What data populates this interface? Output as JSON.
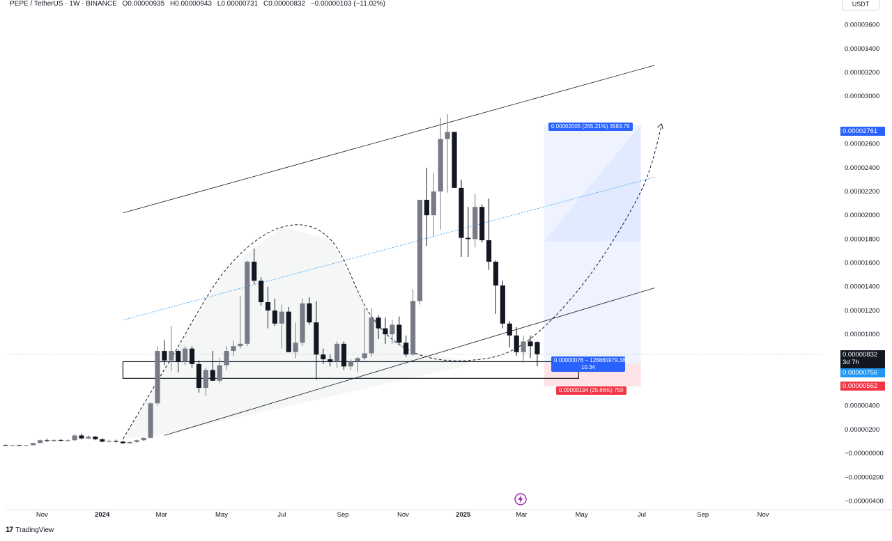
{
  "header": {
    "symbol": "PEPE / TetherUS · 1W · BINANCE",
    "open": "O0.00000935",
    "high": "H0.00000943",
    "low": "L0.00000731",
    "close": "C0.00000832",
    "change": "−0.00000103 (−11.02%)"
  },
  "currency_button": "USDT",
  "footer": {
    "logo": "17",
    "brand": "TradingView"
  },
  "lightning_icon": "lightning-icon",
  "price_tags": {
    "target": "0.00002761",
    "current": "0.00000832",
    "countdown": "3d 7h",
    "entry": "0.00000756",
    "stop": "0.00000562"
  },
  "position": {
    "profit_label": "0.00002005 (265.21%) 3583.76",
    "center_label_line1": "0.00000076 − 128865979.381",
    "center_label_line2": "10.34",
    "loss_label": "0.00000194 (25.66%) 750"
  },
  "colors": {
    "up": "#787b86",
    "down": "#131722",
    "profit_zone": "#2962ff",
    "loss_zone": "#f23645",
    "entry_tag": "#2196f3",
    "target_tag": "#2962ff",
    "stop_tag": "#f23645"
  },
  "chart_data": {
    "type": "candlestick",
    "y_axis": {
      "ticks": [
        3.6e-05,
        3.4e-05,
        3.2e-05,
        3e-05,
        2.6e-05,
        2.4e-05,
        2.2e-05,
        2e-05,
        1.8e-05,
        1.6e-05,
        1.4e-05,
        1.2e-05,
        1e-05,
        4e-06,
        2e-06,
        0,
        -2e-06,
        -4e-06
      ],
      "tick_labels": [
        "0.00003600",
        "0.00003400",
        "0.00003200",
        "0.00003000",
        "0.00002600",
        "0.00002400",
        "0.00002200",
        "0.00002000",
        "0.00001800",
        "0.00001600",
        "0.00001400",
        "0.00001200",
        "0.00001000",
        "0.00000400",
        "0.00000200",
        "−0.00000000",
        "−0.00000200",
        "−0.00000400"
      ],
      "range": [
        -4.5e-06,
        3.75e-05
      ]
    },
    "x_axis": {
      "labels": [
        "Nov",
        "2024",
        "Mar",
        "May",
        "Jul",
        "Sep",
        "Nov",
        "2025",
        "Mar",
        "May",
        "Jul",
        "Sep",
        "Nov"
      ],
      "label_dates": [
        "2023-11-01",
        "2024-01-01",
        "2024-03-01",
        "2024-05-01",
        "2024-07-01",
        "2024-09-01",
        "2024-11-01",
        "2025-01-01",
        "2025-03-01",
        "2025-05-01",
        "2025-07-01",
        "2025-09-01",
        "2025-11-01"
      ],
      "range": [
        "2023-09-25",
        "2025-12-31"
      ]
    },
    "candles": [
      {
        "t": "2023-09-25",
        "o": 7e-07,
        "h": 7.5e-07,
        "l": 6.4e-07,
        "c": 6.6e-07
      },
      {
        "t": "2023-10-02",
        "o": 6.6e-07,
        "h": 7.2e-07,
        "l": 6.3e-07,
        "c": 6.9e-07
      },
      {
        "t": "2023-10-09",
        "o": 6.9e-07,
        "h": 7.2e-07,
        "l": 6.2e-07,
        "c": 6.4e-07
      },
      {
        "t": "2023-10-16",
        "o": 6.4e-07,
        "h": 7e-07,
        "l": 6.2e-07,
        "c": 6.8e-07
      },
      {
        "t": "2023-10-23",
        "o": 6.8e-07,
        "h": 9e-07,
        "l": 6.6e-07,
        "c": 8.7e-07
      },
      {
        "t": "2023-10-30",
        "o": 8.7e-07,
        "h": 1.2e-06,
        "l": 8.5e-07,
        "c": 1.1e-06
      },
      {
        "t": "2023-11-06",
        "o": 1.1e-06,
        "h": 1.25e-06,
        "l": 9.5e-07,
        "c": 1.04e-06
      },
      {
        "t": "2023-11-13",
        "o": 1.04e-06,
        "h": 1.18e-06,
        "l": 9.5e-07,
        "c": 1.12e-06
      },
      {
        "t": "2023-11-20",
        "o": 1.12e-06,
        "h": 1.22e-06,
        "l": 9.8e-07,
        "c": 1.06e-06
      },
      {
        "t": "2023-11-27",
        "o": 1.06e-06,
        "h": 1.18e-06,
        "l": 9.8e-07,
        "c": 1.1e-06
      },
      {
        "t": "2023-12-04",
        "o": 1.1e-06,
        "h": 1.6e-06,
        "l": 1.05e-06,
        "c": 1.5e-06
      },
      {
        "t": "2023-12-11",
        "o": 1.5e-06,
        "h": 1.65e-06,
        "l": 1.18e-06,
        "c": 1.25e-06
      },
      {
        "t": "2023-12-18",
        "o": 1.25e-06,
        "h": 1.5e-06,
        "l": 1.18e-06,
        "c": 1.4e-06
      },
      {
        "t": "2023-12-25",
        "o": 1.4e-06,
        "h": 1.45e-06,
        "l": 1.1e-06,
        "c": 1.18e-06
      },
      {
        "t": "2024-01-01",
        "o": 1.18e-06,
        "h": 1.25e-06,
        "l": 9.2e-07,
        "c": 9.8e-07
      },
      {
        "t": "2024-01-08",
        "o": 9.8e-07,
        "h": 1.15e-06,
        "l": 9e-07,
        "c": 1.05e-06
      },
      {
        "t": "2024-01-15",
        "o": 1.05e-06,
        "h": 1.15e-06,
        "l": 9e-07,
        "c": 9.8e-07
      },
      {
        "t": "2024-01-22",
        "o": 9.8e-07,
        "h": 1.05e-06,
        "l": 8e-07,
        "c": 8.5e-07
      },
      {
        "t": "2024-01-29",
        "o": 8.5e-07,
        "h": 1e-06,
        "l": 8e-07,
        "c": 9.5e-07
      },
      {
        "t": "2024-02-05",
        "o": 9.5e-07,
        "h": 1.15e-06,
        "l": 8.8e-07,
        "c": 1.1e-06
      },
      {
        "t": "2024-02-12",
        "o": 1.1e-06,
        "h": 1.35e-06,
        "l": 1.02e-06,
        "c": 1.3e-06
      },
      {
        "t": "2024-02-19",
        "o": 1.3e-06,
        "h": 4.3e-06,
        "l": 1.25e-06,
        "c": 4.2e-06
      },
      {
        "t": "2024-02-26",
        "o": 4.2e-06,
        "h": 9e-06,
        "l": 4e-06,
        "c": 8.6e-06
      },
      {
        "t": "2024-03-04",
        "o": 8.6e-06,
        "h": 9.5e-06,
        "l": 7.4e-06,
        "c": 7.8e-06
      },
      {
        "t": "2024-03-11",
        "o": 7.8e-06,
        "h": 1.07e-05,
        "l": 6.9e-06,
        "c": 8.6e-06
      },
      {
        "t": "2024-03-18",
        "o": 8.6e-06,
        "h": 8.7e-06,
        "l": 6.8e-06,
        "c": 7.7e-06
      },
      {
        "t": "2024-03-25",
        "o": 7.7e-06,
        "h": 9e-06,
        "l": 7.4e-06,
        "c": 8.8e-06
      },
      {
        "t": "2024-04-01",
        "o": 8.8e-06,
        "h": 9e-06,
        "l": 7.2e-06,
        "c": 7.5e-06
      },
      {
        "t": "2024-04-08",
        "o": 7.5e-06,
        "h": 7.8e-06,
        "l": 5.1e-06,
        "c": 5.5e-06
      },
      {
        "t": "2024-04-15",
        "o": 5.5e-06,
        "h": 7.2e-06,
        "l": 4.8e-06,
        "c": 7e-06
      },
      {
        "t": "2024-04-22",
        "o": 7e-06,
        "h": 8.6e-06,
        "l": 6.1e-06,
        "c": 6.1e-06
      },
      {
        "t": "2024-04-29",
        "o": 6.1e-06,
        "h": 8e-06,
        "l": 5.9e-06,
        "c": 7.4e-06
      },
      {
        "t": "2024-05-06",
        "o": 7.4e-06,
        "h": 9e-06,
        "l": 7e-06,
        "c": 8.6e-06
      },
      {
        "t": "2024-05-13",
        "o": 8.6e-06,
        "h": 9.5e-06,
        "l": 8.2e-06,
        "c": 9e-06
      },
      {
        "t": "2024-05-20",
        "o": 9e-06,
        "h": 1.32e-05,
        "l": 8.8e-06,
        "c": 9.2e-06
      },
      {
        "t": "2024-05-27",
        "o": 9.2e-06,
        "h": 1.62e-05,
        "l": 9e-06,
        "c": 1.61e-05
      },
      {
        "t": "2024-06-03",
        "o": 1.61e-05,
        "h": 1.72e-05,
        "l": 1.42e-05,
        "c": 1.45e-05
      },
      {
        "t": "2024-06-10",
        "o": 1.45e-05,
        "h": 1.48e-05,
        "l": 1.24e-05,
        "c": 1.27e-05
      },
      {
        "t": "2024-06-17",
        "o": 1.27e-05,
        "h": 1.4e-05,
        "l": 1.05e-05,
        "c": 1.2e-05
      },
      {
        "t": "2024-06-24",
        "o": 1.2e-05,
        "h": 1.3e-05,
        "l": 1.07e-05,
        "c": 1.09e-05
      },
      {
        "t": "2024-07-01",
        "o": 1.09e-05,
        "h": 1.25e-05,
        "l": 8.8e-06,
        "c": 1.19e-05
      },
      {
        "t": "2024-07-08",
        "o": 1.19e-05,
        "h": 1.23e-05,
        "l": 8.6e-06,
        "c": 8.5e-06
      },
      {
        "t": "2024-07-15",
        "o": 8.5e-06,
        "h": 1.1e-05,
        "l": 8e-06,
        "c": 9.3e-06
      },
      {
        "t": "2024-07-22",
        "o": 9.3e-06,
        "h": 1.3e-05,
        "l": 9e-06,
        "c": 1.26e-05
      },
      {
        "t": "2024-07-29",
        "o": 1.26e-05,
        "h": 1.31e-05,
        "l": 1.08e-05,
        "c": 1.1e-05
      },
      {
        "t": "2024-08-05",
        "o": 1.1e-05,
        "h": 1.28e-05,
        "l": 6.2e-06,
        "c": 8.3e-06
      },
      {
        "t": "2024-08-12",
        "o": 8.3e-06,
        "h": 8.8e-06,
        "l": 7.5e-06,
        "c": 7.9e-06
      },
      {
        "t": "2024-08-19",
        "o": 7.9e-06,
        "h": 8.3e-06,
        "l": 7.3e-06,
        "c": 7.7e-06
      },
      {
        "t": "2024-08-26",
        "o": 7.7e-06,
        "h": 9.4e-06,
        "l": 7.2e-06,
        "c": 9.2e-06
      },
      {
        "t": "2024-09-02",
        "o": 9.2e-06,
        "h": 9.4e-06,
        "l": 7e-06,
        "c": 7.3e-06
      },
      {
        "t": "2024-09-09",
        "o": 7.3e-06,
        "h": 7.9e-06,
        "l": 7e-06,
        "c": 7.7e-06
      },
      {
        "t": "2024-09-16",
        "o": 7.7e-06,
        "h": 8.1e-06,
        "l": 6.8e-06,
        "c": 8e-06
      },
      {
        "t": "2024-09-23",
        "o": 8e-06,
        "h": 1.22e-05,
        "l": 7.8e-06,
        "c": 8.4e-06
      },
      {
        "t": "2024-09-30",
        "o": 8.4e-06,
        "h": 1.22e-05,
        "l": 8.1e-06,
        "c": 1.14e-05
      },
      {
        "t": "2024-10-07",
        "o": 1.14e-05,
        "h": 1.16e-05,
        "l": 9.6e-06,
        "c": 1.05e-05
      },
      {
        "t": "2024-10-14",
        "o": 1.05e-05,
        "h": 1.14e-05,
        "l": 9.2e-06,
        "c": 1e-05
      },
      {
        "t": "2024-10-21",
        "o": 1e-05,
        "h": 1.12e-05,
        "l": 9.2e-06,
        "c": 1.08e-05
      },
      {
        "t": "2024-10-28",
        "o": 1.08e-05,
        "h": 1.15e-05,
        "l": 9.2e-06,
        "c": 9.3e-06
      },
      {
        "t": "2024-11-04",
        "o": 9.3e-06,
        "h": 9.9e-06,
        "l": 8.1e-06,
        "c": 8.3e-06
      },
      {
        "t": "2024-11-11",
        "o": 8.3e-06,
        "h": 1.38e-05,
        "l": 8.2e-06,
        "c": 1.28e-05
      },
      {
        "t": "2024-11-18",
        "o": 1.28e-05,
        "h": 2.13e-05,
        "l": 1.25e-05,
        "c": 2.13e-05
      },
      {
        "t": "2024-11-25",
        "o": 2.13e-05,
        "h": 2.4e-05,
        "l": 1.74e-05,
        "c": 2e-05
      },
      {
        "t": "2024-12-02",
        "o": 2e-05,
        "h": 2.35e-05,
        "l": 1.82e-05,
        "c": 2.2e-05
      },
      {
        "t": "2024-12-09",
        "o": 2.2e-05,
        "h": 2.82e-05,
        "l": 1.88e-05,
        "c": 2.64e-05
      },
      {
        "t": "2024-12-16",
        "o": 2.64e-05,
        "h": 2.85e-05,
        "l": 2.19e-05,
        "c": 2.7e-05
      },
      {
        "t": "2024-12-23",
        "o": 2.7e-05,
        "h": 2.7e-05,
        "l": 2.23e-05,
        "c": 2.23e-05
      },
      {
        "t": "2024-12-30",
        "o": 2.23e-05,
        "h": 2.3e-05,
        "l": 1.65e-05,
        "c": 1.81e-05
      },
      {
        "t": "2025-01-06",
        "o": 1.81e-05,
        "h": 2.07e-05,
        "l": 1.65e-05,
        "c": 1.8e-05
      },
      {
        "t": "2025-01-13",
        "o": 1.8e-05,
        "h": 2.18e-05,
        "l": 1.73e-05,
        "c": 2.07e-05
      },
      {
        "t": "2025-01-20",
        "o": 2.07e-05,
        "h": 2.09e-05,
        "l": 1.77e-05,
        "c": 1.79e-05
      },
      {
        "t": "2025-01-27",
        "o": 1.79e-05,
        "h": 2.14e-05,
        "l": 1.54e-05,
        "c": 1.61e-05
      },
      {
        "t": "2025-02-03",
        "o": 1.61e-05,
        "h": 1.62e-05,
        "l": 1.17e-05,
        "c": 1.41e-05
      },
      {
        "t": "2025-02-10",
        "o": 1.41e-05,
        "h": 1.45e-05,
        "l": 1.05e-05,
        "c": 1.09e-05
      },
      {
        "t": "2025-02-17",
        "o": 1.09e-05,
        "h": 1.11e-05,
        "l": 8.9e-06,
        "c": 9.9e-06
      },
      {
        "t": "2025-02-24",
        "o": 9.9e-06,
        "h": 1.06e-05,
        "l": 8.2e-06,
        "c": 8.5e-06
      },
      {
        "t": "2025-03-03",
        "o": 8.5e-06,
        "h": 9.9e-06,
        "l": 7.6e-06,
        "c": 9.4e-06
      },
      {
        "t": "2025-03-10",
        "o": 9.4e-06,
        "h": 9.9e-06,
        "l": 8e-06,
        "c": 9e-06
      },
      {
        "t": "2025-03-17",
        "o": 9.35e-06,
        "h": 9.43e-06,
        "l": 7.31e-06,
        "c": 8.32e-06
      }
    ],
    "channel_upper": [
      [
        "2024-01-22",
        2.02e-05
      ],
      [
        "2025-07-14",
        3.26e-05
      ]
    ],
    "channel_lower": [
      [
        "2024-03-04",
        1.5e-06
      ],
      [
        "2025-07-14",
        1.39e-05
      ]
    ],
    "channel_mid": [
      [
        "2024-01-22",
        1.12e-05
      ],
      [
        "2025-07-14",
        2.32e-05
      ]
    ],
    "support_zone": {
      "from": "2024-01-22",
      "to": "2025-04-28",
      "top": 7.7e-06,
      "bottom": 6.3e-06
    },
    "cup_path": [
      [
        "2024-01-22",
        1.2e-06
      ],
      [
        "2024-03-11",
        8e-06
      ],
      [
        "2024-05-06",
        1.55e-05
      ],
      [
        "2024-07-01",
        1.9e-05
      ],
      [
        "2024-08-19",
        1.8e-05
      ],
      [
        "2024-09-30",
        1.15e-05
      ],
      [
        "2024-11-11",
        8.5e-06
      ],
      [
        "2025-01-06",
        7.8e-06
      ],
      [
        "2025-03-03",
        9.2e-06
      ],
      [
        "2025-05-05",
        1.45e-05
      ],
      [
        "2025-06-30",
        2.2e-05
      ],
      [
        "2025-07-21",
        2.75e-05
      ]
    ],
    "position": {
      "from": "2025-03-24",
      "to": "2025-06-30",
      "entry": 7.56e-06,
      "target": 2.761e-05,
      "stop": 5.62e-06
    },
    "current_price": 8.32e-06
  }
}
